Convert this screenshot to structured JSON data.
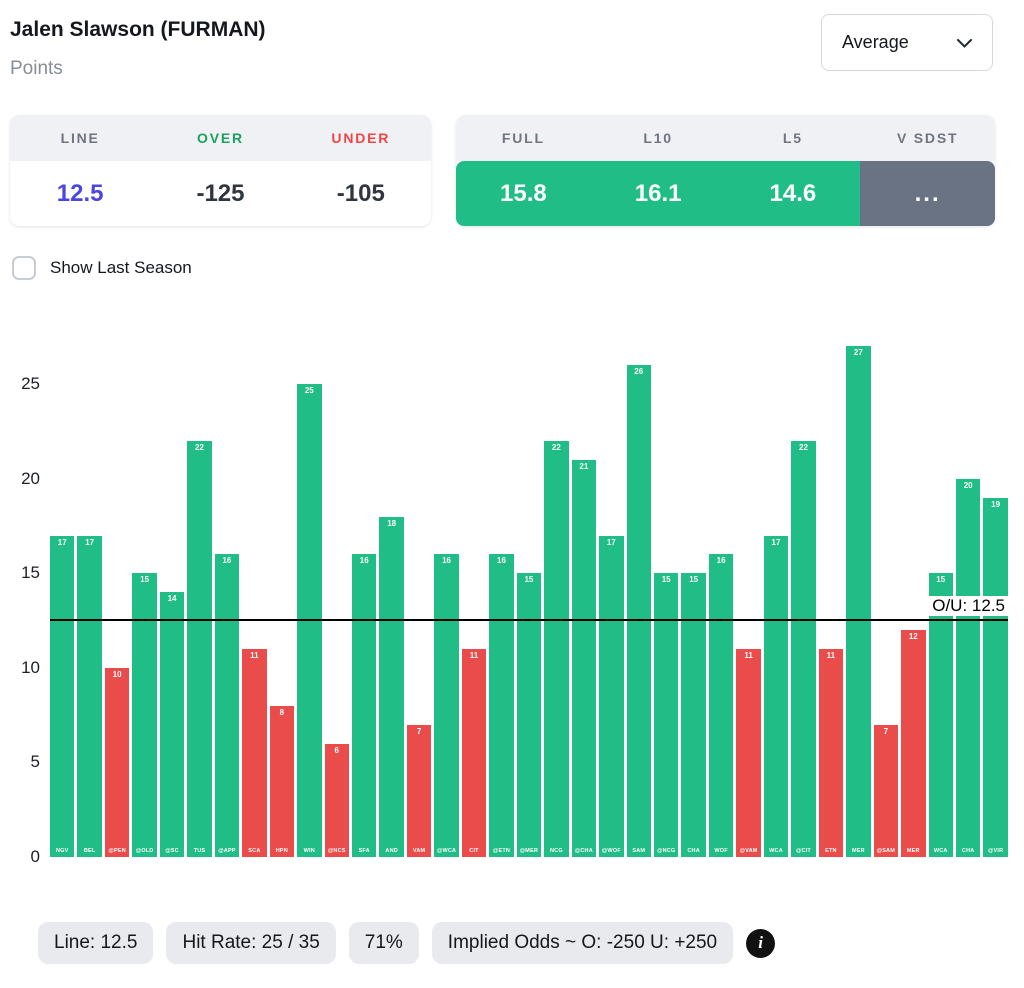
{
  "header": {
    "player_name": "Jalen Slawson (FURMAN)",
    "stat_label": "Points",
    "mode_dropdown": {
      "selected": "Average"
    }
  },
  "line_box": {
    "headers": [
      "LINE",
      "OVER",
      "UNDER"
    ],
    "line": "12.5",
    "over": "-125",
    "under": "-105"
  },
  "splits_box": {
    "headers": [
      "FULL",
      "L10",
      "L5",
      "V SDST"
    ],
    "green_values": [
      "15.8",
      "16.1",
      "14.6"
    ],
    "gray_value": "..."
  },
  "controls": {
    "show_last_season_label": "Show Last Season",
    "show_last_season_checked": false
  },
  "chart_data": {
    "type": "bar",
    "title": "",
    "xlabel": "",
    "ylabel": "",
    "ylim": [
      0,
      27.5
    ],
    "yticks": [
      0,
      5,
      10,
      15,
      20,
      25
    ],
    "grid": false,
    "legend": "none",
    "ou_line": {
      "value": 12.5,
      "label": "O/U: 12.5"
    },
    "categories": [
      "NGV",
      "BEL",
      "@PEN",
      "@OLD",
      "@SC",
      "TUS",
      "@APP",
      "SCA",
      "HPN",
      "WIN",
      "@NCS",
      "SFA",
      "AND",
      "VAM",
      "@WCA",
      "CIT",
      "@ETN",
      "@MER",
      "NCG",
      "@CHA",
      "@WOF",
      "SAM",
      "@NCG",
      "CHA",
      "WOF",
      "@VAM",
      "WCA",
      "@CIT",
      "ETN",
      "MER",
      "@SAM",
      "MER",
      "WCA",
      "CHA",
      "@VIR"
    ],
    "values": [
      17,
      17,
      10,
      15,
      14,
      22,
      16,
      11,
      8,
      25,
      6,
      16,
      18,
      7,
      16,
      11,
      16,
      15,
      22,
      21,
      17,
      26,
      15,
      15,
      16,
      11,
      17,
      22,
      11,
      27,
      7,
      12,
      15,
      20,
      19
    ],
    "colors": {
      "over": "#21BD87",
      "under": "#EA4B4B"
    }
  },
  "footer": {
    "pills": [
      "Line: 12.5",
      "Hit Rate: 25 / 35",
      "71%",
      "Implied Odds ~ O: -250 U: +250"
    ]
  }
}
